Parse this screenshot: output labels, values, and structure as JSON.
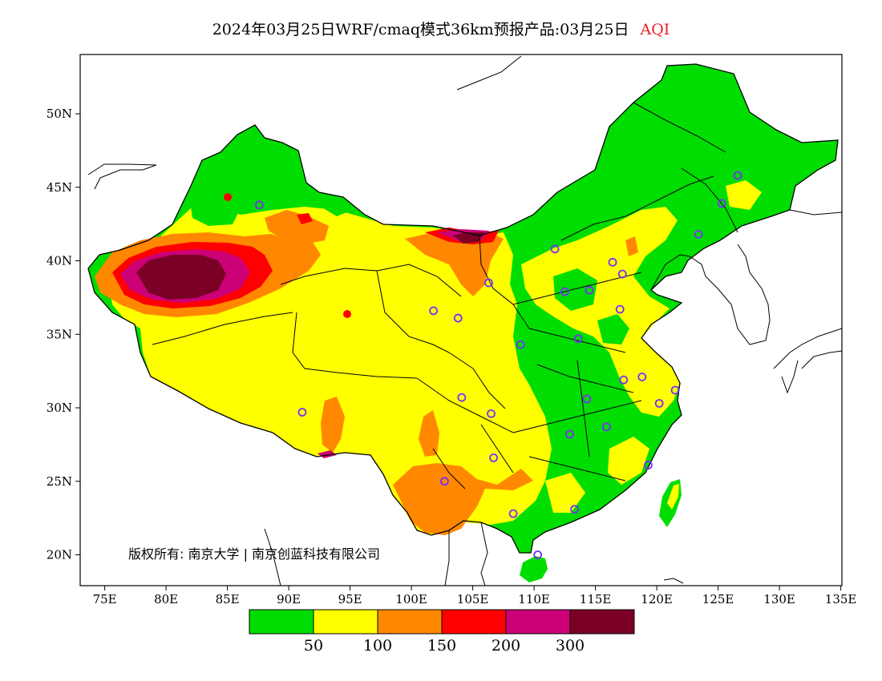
{
  "title": {
    "main": "2024年03月25日WRF/cmaq模式36km预报产品:03月25日",
    "variable": "AQI"
  },
  "axes": {
    "y_ticks": [
      "50N",
      "45N",
      "40N",
      "35N",
      "30N",
      "25N",
      "20N"
    ],
    "x_ticks": [
      "75E",
      "80E",
      "85E",
      "90E",
      "95E",
      "100E",
      "105E",
      "110E",
      "115E",
      "120E",
      "125E",
      "130E",
      "135E"
    ],
    "lon_range": [
      73,
      135
    ],
    "lat_range": [
      18,
      54
    ]
  },
  "copyright": "版权所有: 南京大学 | 南京创蓝科技有限公司",
  "legend": {
    "colors": [
      "#00dd00",
      "#ffff00",
      "#ff8800",
      "#ff0000",
      "#cc0077",
      "#7a0026"
    ],
    "labels": [
      "50",
      "100",
      "150",
      "200",
      "300"
    ]
  },
  "stations": [
    {
      "lon": 87.6,
      "lat": 43.8
    },
    {
      "lon": 91.1,
      "lat": 29.7
    },
    {
      "lon": 101.8,
      "lat": 36.6
    },
    {
      "lon": 103.8,
      "lat": 36.1
    },
    {
      "lon": 106.3,
      "lat": 38.5
    },
    {
      "lon": 104.1,
      "lat": 30.7
    },
    {
      "lon": 106.5,
      "lat": 29.6
    },
    {
      "lon": 102.7,
      "lat": 25.0
    },
    {
      "lon": 106.7,
      "lat": 26.6
    },
    {
      "lon": 108.3,
      "lat": 22.8
    },
    {
      "lon": 110.3,
      "lat": 20.0
    },
    {
      "lon": 113.3,
      "lat": 23.1
    },
    {
      "lon": 112.9,
      "lat": 28.2
    },
    {
      "lon": 114.3,
      "lat": 30.6
    },
    {
      "lon": 115.9,
      "lat": 28.7
    },
    {
      "lon": 117.3,
      "lat": 31.9
    },
    {
      "lon": 118.8,
      "lat": 32.1
    },
    {
      "lon": 120.2,
      "lat": 30.3
    },
    {
      "lon": 121.5,
      "lat": 31.2
    },
    {
      "lon": 119.3,
      "lat": 26.1
    },
    {
      "lon": 113.6,
      "lat": 34.7
    },
    {
      "lon": 108.9,
      "lat": 34.3
    },
    {
      "lon": 112.5,
      "lat": 37.9
    },
    {
      "lon": 114.5,
      "lat": 38.0
    },
    {
      "lon": 117.0,
      "lat": 36.7
    },
    {
      "lon": 117.2,
      "lat": 39.1
    },
    {
      "lon": 116.4,
      "lat": 39.9
    },
    {
      "lon": 111.7,
      "lat": 40.8
    },
    {
      "lon": 123.4,
      "lat": 41.8
    },
    {
      "lon": 125.3,
      "lat": 43.9
    },
    {
      "lon": 126.6,
      "lat": 45.8
    }
  ]
}
